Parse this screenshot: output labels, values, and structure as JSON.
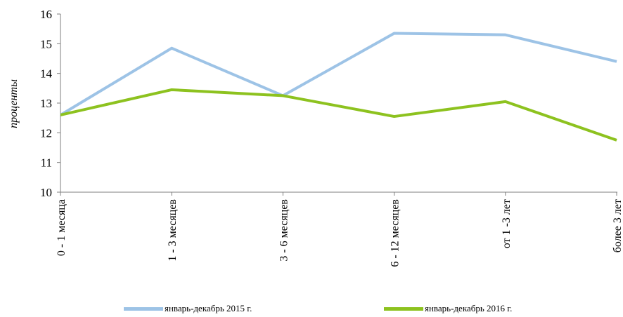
{
  "chart_data": {
    "type": "line",
    "title": "",
    "xlabel": "",
    "ylabel": "проценты",
    "ylim": [
      10,
      16
    ],
    "yticks": [
      10,
      11,
      12,
      13,
      14,
      15,
      16
    ],
    "categories": [
      "0 - 1 месяца",
      "1 - 3 месяцев",
      "3 - 6 месяцев",
      "6 - 12 месяцев",
      "от 1 -3 лет",
      "более 3 лет"
    ],
    "series": [
      {
        "name": "январь-декабрь 2015 г.",
        "color": "#9dc3e6",
        "values": [
          12.6,
          14.85,
          13.25,
          15.35,
          15.3,
          14.4
        ]
      },
      {
        "name": "январь-декабрь 2016 г.",
        "color": "#8dc21f",
        "values": [
          12.6,
          13.45,
          13.25,
          12.55,
          13.05,
          11.75
        ]
      }
    ],
    "grid": false,
    "legend_position": "bottom"
  }
}
